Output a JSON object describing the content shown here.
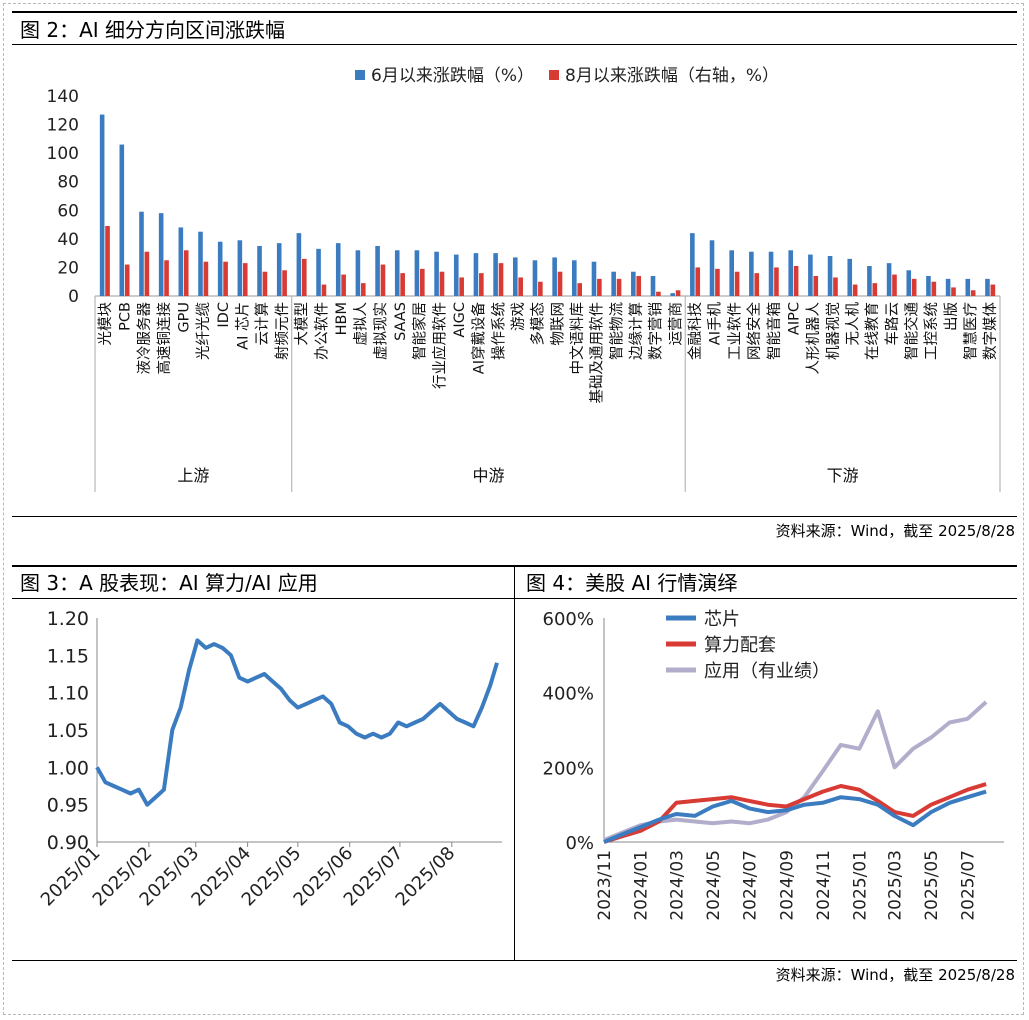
{
  "fig2": {
    "title": "图 2：AI 细分方向区间涨跌幅",
    "source": "资料来源：Wind，截至 2025/8/28"
  },
  "fig3": {
    "title": "图 3：A 股表现：AI 算力/AI 应用"
  },
  "fig4": {
    "title": "图 4：美股 AI 行情演绎"
  },
  "bottom_source": "资料来源：Wind，截至 2025/8/28",
  "colors": {
    "blue": "#3b7cc1",
    "red": "#d83a34",
    "lavender": "#b3adcc"
  },
  "chart_data": [
    {
      "type": "bar",
      "categories": [
        "光模块",
        "PCB",
        "液冷服务器",
        "高速铜连接",
        "GPU",
        "光纤光缆",
        "IDC",
        "AI 芯片",
        "云计算",
        "射频元件",
        "大模型",
        "办公软件",
        "HBM",
        "虚拟人",
        "虚拟现实",
        "SAAS",
        "智能家居",
        "行业应用软件",
        "AIGC",
        "AI穿戴设备",
        "操作系统",
        "游戏",
        "多模态",
        "物联网",
        "中文语料库",
        "基础及通用软件",
        "智能物流",
        "边缘计算",
        "数字营销",
        "运营商",
        "金融科技",
        "AI手机",
        "工业软件",
        "网络安全",
        "智能音箱",
        "AIPC",
        "人形机器人",
        "机器视觉",
        "无人机",
        "在线教育",
        "车路云",
        "智能交通",
        "工控系统",
        "出版",
        "智慧医疗",
        "数字媒体"
      ],
      "groups": [
        {
          "name": "上游",
          "count": 10
        },
        {
          "name": "中游",
          "count": 20
        },
        {
          "name": "下游",
          "count": 16
        }
      ],
      "series": [
        {
          "name": "6月以来涨跌幅（%）",
          "axis": "left",
          "color": "#3b7cc1",
          "values": [
            127,
            106,
            59,
            58,
            48,
            45,
            38,
            39,
            35,
            37,
            44,
            33,
            37,
            32,
            35,
            32,
            32,
            31,
            29,
            30,
            30,
            27,
            25,
            27,
            25,
            24,
            17,
            17,
            14,
            2,
            44,
            39,
            32,
            31,
            31,
            32,
            29,
            28,
            26,
            21,
            23,
            18,
            14,
            12,
            12,
            12
          ]
        },
        {
          "name": "8月以来涨跌幅（右轴，%）",
          "axis": "right",
          "color": "#d83a34",
          "values": [
            49,
            22,
            31,
            25,
            32,
            24,
            24,
            23,
            17,
            18,
            26,
            8,
            15,
            9,
            22,
            16,
            19,
            17,
            13,
            16,
            23,
            13,
            10,
            17,
            9,
            12,
            12,
            14,
            3,
            4,
            20,
            19,
            17,
            16,
            20,
            21,
            14,
            13,
            8,
            9,
            15,
            12,
            10,
            6,
            4,
            8
          ]
        }
      ],
      "yticks": [
        "0",
        "20",
        "40",
        "60",
        "80",
        "100",
        "120",
        "140"
      ],
      "ylim": [
        0,
        140
      ]
    },
    {
      "type": "line",
      "series": [
        {
          "name": "",
          "color": "#3b7cc1",
          "x": [
            "2025/01/01",
            "2025/01/06",
            "2025/01/11",
            "2025/01/16",
            "2025/01/21",
            "2025/01/26",
            "2025/01/31",
            "2025/02/05",
            "2025/02/10",
            "2025/02/15",
            "2025/02/20",
            "2025/02/25",
            "2025/03/02",
            "2025/03/07",
            "2025/03/12",
            "2025/03/17",
            "2025/03/22",
            "2025/03/27",
            "2025/04/01",
            "2025/04/06",
            "2025/04/11",
            "2025/04/16",
            "2025/04/21",
            "2025/04/26",
            "2025/05/01",
            "2025/05/06",
            "2025/05/11",
            "2025/05/16",
            "2025/05/21",
            "2025/05/26",
            "2025/05/31",
            "2025/06/05",
            "2025/06/10",
            "2025/06/15",
            "2025/06/20",
            "2025/06/25",
            "2025/06/30",
            "2025/07/05",
            "2025/07/10",
            "2025/07/15",
            "2025/07/20",
            "2025/07/25",
            "2025/07/30",
            "2025/08/04",
            "2025/08/09",
            "2025/08/14",
            "2025/08/19",
            "2025/08/24",
            "2025/08/28"
          ],
          "values": [
            1.0,
            0.98,
            0.975,
            0.97,
            0.965,
            0.97,
            0.95,
            0.96,
            0.97,
            1.05,
            1.08,
            1.13,
            1.17,
            1.16,
            1.165,
            1.16,
            1.15,
            1.12,
            1.115,
            1.12,
            1.125,
            1.115,
            1.105,
            1.09,
            1.08,
            1.085,
            1.09,
            1.095,
            1.085,
            1.06,
            1.055,
            1.045,
            1.04,
            1.045,
            1.04,
            1.045,
            1.06,
            1.055,
            1.06,
            1.065,
            1.075,
            1.085,
            1.075,
            1.065,
            1.06,
            1.055,
            1.08,
            1.11,
            1.14
          ]
        }
      ],
      "xticks": [
        "2025/01",
        "2025/02",
        "2025/03",
        "2025/04",
        "2025/05",
        "2025/06",
        "2025/07",
        "2025/08"
      ],
      "yticks": [
        "0.90",
        "0.95",
        "1.00",
        "1.05",
        "1.10",
        "1.15",
        "1.20"
      ],
      "ylim": [
        0.9,
        1.2
      ]
    },
    {
      "type": "line",
      "series": [
        {
          "name": "芯片",
          "color": "#3b7cc1",
          "x": [
            "2023/11",
            "2023/12",
            "2024/01",
            "2024/02",
            "2024/03",
            "2024/04",
            "2024/05",
            "2024/06",
            "2024/07",
            "2024/08",
            "2024/09",
            "2024/10",
            "2024/11",
            "2024/12",
            "2025/01",
            "2025/02",
            "2025/03",
            "2025/04",
            "2025/05",
            "2025/06",
            "2025/07",
            "2025/08"
          ],
          "values": [
            0,
            20,
            40,
            60,
            75,
            70,
            95,
            110,
            90,
            80,
            85,
            100,
            105,
            120,
            115,
            100,
            70,
            45,
            80,
            105,
            120,
            135
          ]
        },
        {
          "name": "算力配套",
          "color": "#d83a34",
          "x": [
            "2023/11",
            "2023/12",
            "2024/01",
            "2024/02",
            "2024/03",
            "2024/04",
            "2024/05",
            "2024/06",
            "2024/07",
            "2024/08",
            "2024/09",
            "2024/10",
            "2024/11",
            "2024/12",
            "2025/01",
            "2025/02",
            "2025/03",
            "2025/04",
            "2025/05",
            "2025/06",
            "2025/07",
            "2025/08"
          ],
          "values": [
            0,
            15,
            30,
            55,
            105,
            110,
            115,
            120,
            110,
            100,
            95,
            115,
            135,
            150,
            140,
            110,
            80,
            70,
            100,
            120,
            140,
            155
          ]
        },
        {
          "name": "应用（有业绩）",
          "color": "#b3adcc",
          "x": [
            "2023/11",
            "2023/12",
            "2024/01",
            "2024/02",
            "2024/03",
            "2024/04",
            "2024/05",
            "2024/06",
            "2024/07",
            "2024/08",
            "2024/09",
            "2024/10",
            "2024/11",
            "2024/12",
            "2025/01",
            "2025/02",
            "2025/03",
            "2025/04",
            "2025/05",
            "2025/06",
            "2025/07",
            "2025/08"
          ],
          "values": [
            5,
            25,
            45,
            55,
            60,
            55,
            50,
            55,
            50,
            60,
            80,
            120,
            190,
            260,
            250,
            350,
            200,
            250,
            280,
            320,
            330,
            375
          ]
        }
      ],
      "xticks": [
        "2023/11",
        "2024/01",
        "2024/03",
        "2024/05",
        "2024/07",
        "2024/09",
        "2024/11",
        "2025/01",
        "2025/03",
        "2025/05",
        "2025/07"
      ],
      "yticks": [
        "0%",
        "200%",
        "400%",
        "600%"
      ],
      "ylim": [
        0,
        600
      ]
    }
  ]
}
